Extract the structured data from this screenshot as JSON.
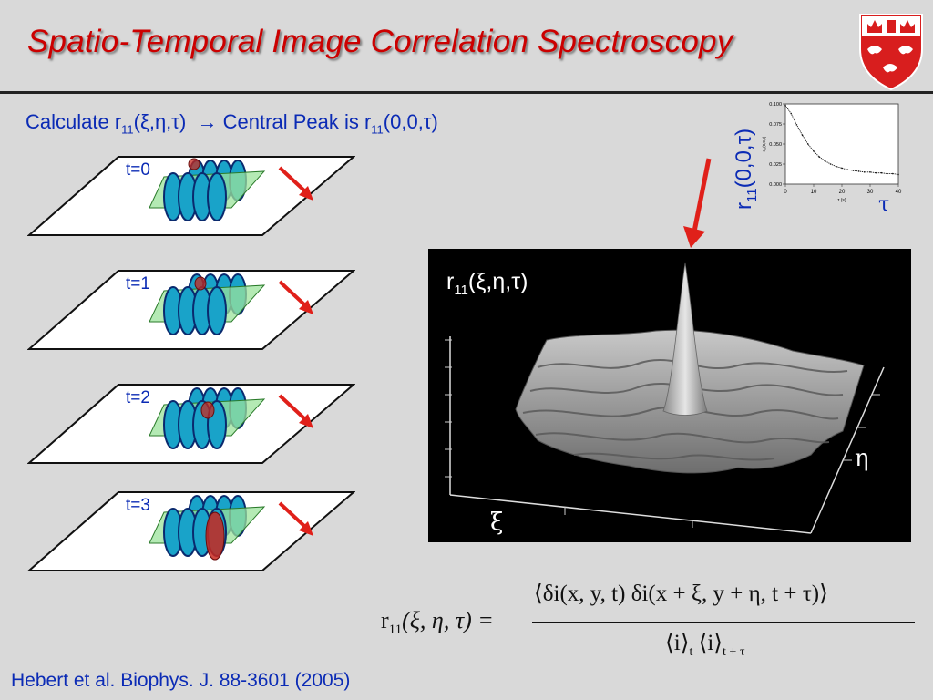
{
  "slide": {
    "title": "Spatio-Temporal Image Correlation Spectroscopy",
    "subtitle": {
      "prefix": "Calculate r",
      "sub1": "11",
      "args1": "(ξ,η,τ)",
      "arrow": "→",
      "middle": " Central Peak is r",
      "sub2": "11",
      "args2": "(0,0,τ)"
    },
    "frames": [
      {
        "label": "t=0"
      },
      {
        "label": "t=1"
      },
      {
        "label": "t=2"
      },
      {
        "label": "t=3"
      }
    ],
    "mini_plot": {
      "ylabel_main": "r",
      "ylabel_sub": "11",
      "ylabel_args": "(0,0,τ)",
      "xlabel_symbol": "τ",
      "axis_xtitle": "τ (s)",
      "axis_ytitle": "r₁₁(0,0,τ)",
      "chart_data": {
        "type": "line",
        "x": [
          0,
          2,
          4,
          6,
          8,
          10,
          12,
          14,
          16,
          18,
          20,
          22,
          24,
          26,
          28,
          30,
          32,
          34,
          36,
          38,
          40
        ],
        "y": [
          0.098,
          0.088,
          0.074,
          0.061,
          0.05,
          0.041,
          0.034,
          0.029,
          0.025,
          0.022,
          0.02,
          0.018,
          0.017,
          0.016,
          0.015,
          0.015,
          0.014,
          0.014,
          0.013,
          0.013,
          0.012
        ],
        "xlim": [
          0,
          40
        ],
        "ylim": [
          0,
          0.1
        ],
        "xticks": [
          "0",
          "10",
          "20",
          "30",
          "40"
        ],
        "yticks": [
          "0.000",
          "0.025",
          "0.050",
          "0.075",
          "0.100"
        ]
      }
    },
    "surface_plot": {
      "label_main": "r",
      "label_sub": "11",
      "label_args": "(ξ,η,τ)",
      "xi": "ξ",
      "eta": "η"
    },
    "formula": {
      "lhs": "r",
      "lhs_sub": "11",
      "lhs_args": "(ξ, η, τ) =",
      "numerator": "⟨δi(x, y, t) δi(x + ξ, y + η, t + τ)⟩",
      "den_left": "⟨i⟩",
      "den_left_sub": "t",
      "den_right": "⟨i⟩",
      "den_right_sub": "t + τ"
    },
    "citation": "Hebert et al. Biophys. J. 88-3601 (2005)",
    "colors": {
      "title": "#cc0000",
      "text": "#0b2bb5",
      "arrow": "#e0201a",
      "background": "#d9d9d9"
    }
  }
}
